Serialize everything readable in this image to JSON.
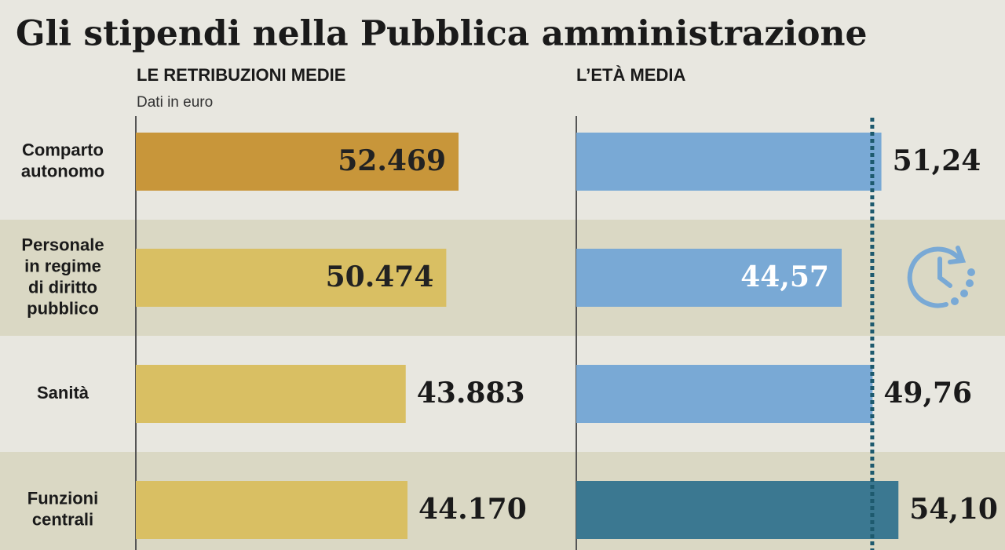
{
  "title": "Gli stipendi nella Pubblica amministrazione",
  "chart_data": [
    {
      "type": "bar",
      "orientation": "horizontal",
      "title": "LE RETRIBUZIONI MEDIE",
      "subtitle": "Dati in euro",
      "categories": [
        "Comparto\nautonomo",
        "Personale\nin regime\ndi diritto\npubblico",
        "Sanità",
        "Funzioni\ncentrali"
      ],
      "values": [
        52469,
        50474,
        43883,
        44170
      ],
      "value_labels": [
        "52.469",
        "50.474",
        "43.883",
        "44.170"
      ],
      "colors": [
        "#c8963a",
        "#d9bf63",
        "#d9bf63",
        "#d9bf63"
      ],
      "label_inside": [
        true,
        true,
        false,
        false
      ],
      "inside_label_color": "#222222",
      "xlim": [
        0,
        60000
      ]
    },
    {
      "type": "bar",
      "orientation": "horizontal",
      "title": "L’ETÀ MEDIA",
      "values": [
        51.24,
        44.57,
        49.76,
        54.1
      ],
      "value_labels": [
        "51,24",
        "44,57",
        "49,76",
        "54,10"
      ],
      "colors": [
        "#79a9d5",
        "#79a9d5",
        "#79a9d5",
        "#3b7891"
      ],
      "label_inside": [
        false,
        true,
        false,
        false
      ],
      "inside_label_color": "#ffffff",
      "reference_line": 49.7,
      "reference_color": "#1e5a6e",
      "xlim": [
        0,
        60
      ]
    }
  ]
}
